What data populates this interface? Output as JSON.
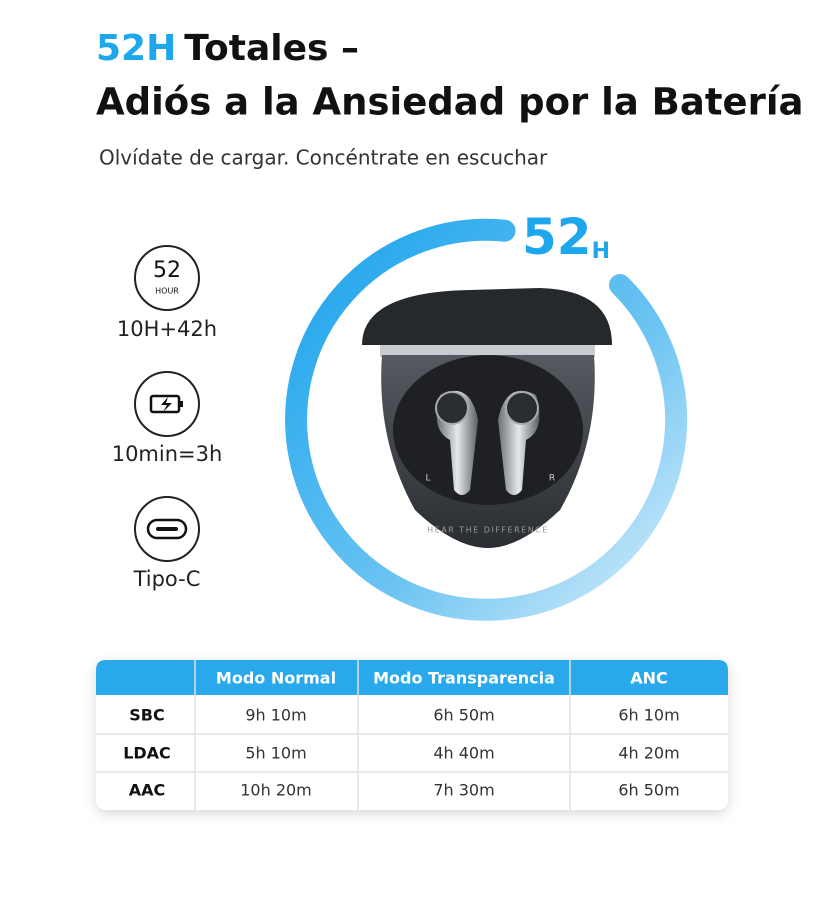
{
  "header": {
    "title_highlight": "52H",
    "title_rest": "Totales –",
    "title_line2": "Adiós a la Ansiedad por la Batería",
    "subtitle": "Olvídate de cargar. Concéntrate en escuchar"
  },
  "features": [
    {
      "icon_number": "52",
      "icon_unit": "HOUR",
      "label": "10H+42h"
    },
    {
      "label": "10min=3h"
    },
    {
      "label": "Tipo-C"
    }
  ],
  "ring": {
    "number": "52",
    "unit": "H"
  },
  "product": {
    "engraving": "HEAR THE DIFFERENCE",
    "left": "L",
    "right": "R"
  },
  "table": {
    "columns": [
      "Modo Normal",
      "Modo Transparencia",
      "ANC"
    ],
    "rows": [
      {
        "label": "SBC",
        "cells": [
          "9h 10m",
          "6h 50m",
          "6h 10m"
        ]
      },
      {
        "label": "LDAC",
        "cells": [
          "5h 10m",
          "4h 40m",
          "4h 20m"
        ]
      },
      {
        "label": "AAC",
        "cells": [
          "10h 20m",
          "7h 30m",
          "6h 50m"
        ]
      }
    ]
  }
}
